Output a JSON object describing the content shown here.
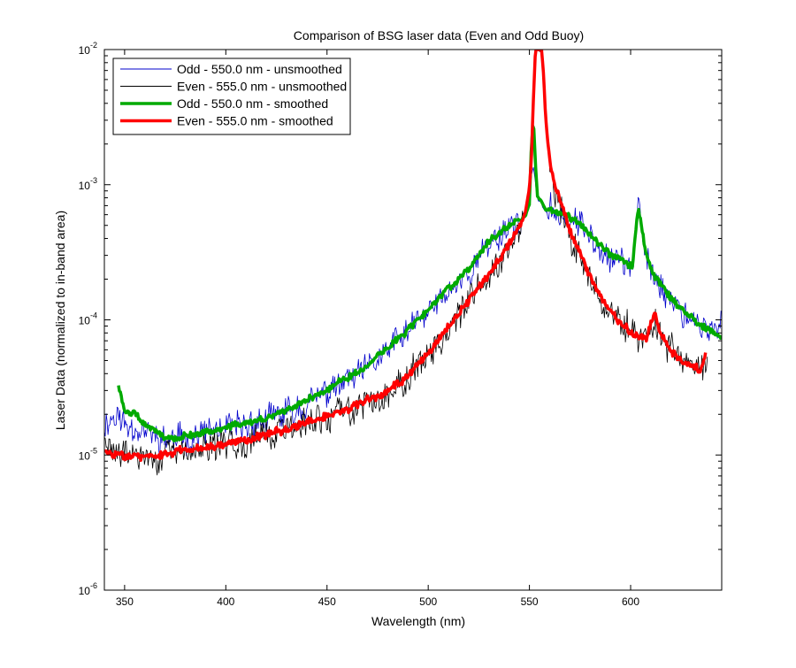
{
  "chart_data": {
    "type": "line",
    "title": "Comparison of BSG laser data (Even and Odd Buoy)",
    "xlabel": "Wavelength (nm)",
    "ylabel": "Laser Data (normalized to in-band area)",
    "xlim": [
      340,
      645
    ],
    "ylim": [
      1e-06,
      0.01
    ],
    "yscale": "log",
    "grid": false,
    "legend_position": "top-left",
    "x_ticks": [
      350,
      400,
      450,
      500,
      550,
      600
    ],
    "x_tick_labels": [
      "350",
      "400",
      "450",
      "500",
      "550",
      "600"
    ],
    "y_ticks": [
      {
        "value": 1e-06,
        "base": "10",
        "exp": "-6"
      },
      {
        "value": 1e-05,
        "base": "10",
        "exp": "-5"
      },
      {
        "value": 0.0001,
        "base": "10",
        "exp": "-4"
      },
      {
        "value": 0.001,
        "base": "10",
        "exp": "-3"
      },
      {
        "value": 0.01,
        "base": "10",
        "exp": "-2"
      }
    ],
    "series": [
      {
        "name": "Odd - 550.0 nm - unsmoothed",
        "color": "#0000cc",
        "line_width": 0.8,
        "noise": 0.55,
        "seed": 11,
        "x": [
          340,
          346,
          350,
          355,
          360,
          365,
          370,
          375,
          380,
          385,
          390,
          395,
          400,
          410,
          420,
          430,
          440,
          450,
          460,
          470,
          480,
          490,
          500,
          510,
          520,
          530,
          540,
          545,
          548,
          550,
          551,
          552,
          553,
          554,
          555,
          556,
          557,
          558,
          560,
          565,
          570,
          575,
          580,
          585,
          590,
          595,
          598,
          601,
          603,
          604,
          605,
          607,
          610,
          615,
          620,
          625,
          630,
          635,
          640,
          645
        ],
        "y": [
          1.7e-05,
          2e-05,
          1.7e-05,
          1.6e-05,
          1.5e-05,
          1.4e-05,
          1.3e-05,
          1.3e-05,
          1.35e-05,
          1.4e-05,
          1.45e-05,
          1.5e-05,
          1.55e-05,
          1.65e-05,
          1.8e-05,
          2.05e-05,
          2.4e-05,
          2.9e-05,
          3.5e-05,
          4.3e-05,
          6e-05,
          8.2e-05,
          0.000115,
          0.00016,
          0.000225,
          0.00036,
          0.0005,
          0.00053,
          0.00058,
          0.0007,
          0.0012,
          0.0013,
          0.001,
          0.0008,
          0.00076,
          0.00073,
          0.00068,
          0.00063,
          0.00063,
          0.0006,
          0.00056,
          0.0005,
          0.00042,
          0.00035,
          0.0003,
          0.000275,
          0.000255,
          0.00025,
          0.00054,
          0.00064,
          0.00052,
          0.00033,
          0.00023,
          0.000175,
          0.000142,
          0.000118,
          0.0001,
          8.8e-05,
          8e-05,
          9.5e-05
        ]
      },
      {
        "name": "Even - 555.0 nm - unsmoothed",
        "color": "#000000",
        "line_width": 0.8,
        "noise": 0.6,
        "seed": 29,
        "x": [
          340,
          346,
          350,
          355,
          360,
          365,
          370,
          375,
          380,
          385,
          390,
          395,
          400,
          410,
          420,
          430,
          440,
          450,
          460,
          470,
          480,
          490,
          500,
          510,
          520,
          530,
          540,
          545,
          548,
          550,
          551,
          552,
          553,
          554,
          555,
          556,
          557,
          558,
          559,
          560,
          562,
          565,
          570,
          575,
          580,
          585,
          590,
          595,
          600,
          605,
          608,
          612,
          615,
          620,
          625,
          630,
          635,
          638
        ],
        "y": [
          1.2e-05,
          1.05e-05,
          1e-05,
          1e-05,
          9.5e-06,
          9.5e-06,
          9.8e-06,
          1e-05,
          1.05e-05,
          1.1e-05,
          1.1e-05,
          1.15e-05,
          1.2e-05,
          1.3e-05,
          1.42e-05,
          1.55e-05,
          1.7e-05,
          1.9e-05,
          2.15e-05,
          2.45e-05,
          2.9e-05,
          3.8e-05,
          5.6e-05,
          8.5e-05,
          0.000135,
          0.00021,
          0.00035,
          0.00048,
          0.0006,
          0.0009,
          0.0015,
          0.004,
          0.01,
          0.01,
          0.01,
          0.01,
          0.006,
          0.003,
          0.002,
          0.0015,
          0.001,
          0.00075,
          0.00045,
          0.0003,
          0.000205,
          0.000145,
          0.000112,
          9.2e-05,
          8.2e-05,
          7.3e-05,
          7.3e-05,
          0.000108,
          7.5e-05,
          5.8e-05,
          5e-05,
          4.5e-05,
          4.1e-05,
          4.3e-05
        ]
      },
      {
        "name": "Odd - 550.0 nm - smoothed",
        "color": "#00aa00",
        "line_width": 3.5,
        "noise": 0.12,
        "seed": 47,
        "x": [
          347,
          350,
          355,
          360,
          365,
          370,
          375,
          380,
          385,
          390,
          395,
          400,
          410,
          420,
          430,
          440,
          450,
          460,
          470,
          480,
          490,
          500,
          510,
          520,
          530,
          540,
          545,
          548,
          550,
          551,
          552,
          553,
          554,
          555,
          556,
          557,
          558,
          560,
          565,
          570,
          575,
          580,
          585,
          590,
          595,
          598,
          601,
          603,
          604,
          605,
          607,
          610,
          615,
          620,
          625,
          630,
          635,
          640,
          645
        ],
        "y": [
          3.3e-05,
          2.1e-05,
          2e-05,
          1.7e-05,
          1.5e-05,
          1.35e-05,
          1.35e-05,
          1.38e-05,
          1.42e-05,
          1.48e-05,
          1.52e-05,
          1.6e-05,
          1.72e-05,
          1.88e-05,
          2.15e-05,
          2.55e-05,
          3.05e-05,
          3.75e-05,
          4.6e-05,
          6.2e-05,
          8.5e-05,
          0.00012,
          0.00017,
          0.00024,
          0.00038,
          0.00051,
          0.00054,
          0.00059,
          0.00072,
          0.002,
          0.003,
          0.0014,
          0.00082,
          0.00078,
          0.00075,
          0.0007,
          0.00065,
          0.00065,
          0.00062,
          0.00058,
          0.00052,
          0.00043,
          0.00036,
          0.000305,
          0.00028,
          0.00026,
          0.000255,
          0.00056,
          0.00066,
          0.00053,
          0.00034,
          0.000235,
          0.00018,
          0.000145,
          0.00012,
          0.000103,
          9e-05,
          8.2e-05,
          7.5e-05
        ]
      },
      {
        "name": "Even - 555.0 nm - smoothed",
        "color": "#ff0000",
        "line_width": 3.5,
        "noise": 0.14,
        "seed": 83,
        "x": [
          340,
          344,
          348,
          352,
          356,
          360,
          365,
          370,
          375,
          380,
          385,
          390,
          395,
          400,
          410,
          420,
          430,
          440,
          450,
          460,
          470,
          480,
          490,
          500,
          510,
          520,
          530,
          540,
          545,
          548,
          550,
          551,
          552,
          553,
          554,
          555,
          556,
          557,
          558,
          559,
          560,
          562,
          565,
          570,
          575,
          580,
          585,
          590,
          595,
          600,
          605,
          608,
          610,
          612,
          615,
          620,
          625,
          630,
          635,
          637
        ],
        "y": [
          1.05e-05,
          1e-05,
          1.02e-05,
          1e-05,
          9.8e-06,
          9.6e-06,
          9.8e-06,
          1e-05,
          1.05e-05,
          1.1e-05,
          1.12e-05,
          1.15e-05,
          1.18e-05,
          1.22e-05,
          1.3e-05,
          1.42e-05,
          1.55e-05,
          1.72e-05,
          1.95e-05,
          2.2e-05,
          2.5e-05,
          2.95e-05,
          3.9e-05,
          5.7e-05,
          8.7e-05,
          0.000138,
          0.000215,
          0.00036,
          0.0005,
          0.00062,
          0.00095,
          0.0016,
          0.0045,
          0.01,
          0.01,
          0.01,
          0.01,
          0.0065,
          0.0032,
          0.0021,
          0.0016,
          0.00105,
          0.00078,
          0.00046,
          0.000305,
          0.00021,
          0.000148,
          0.000114,
          9.4e-05,
          8.3e-05,
          7.4e-05,
          7.4e-05,
          9.5e-05,
          0.000115,
          7.7e-05,
          5.9e-05,
          5.1e-05,
          4.6e-05,
          4.2e-05,
          5.5e-05
        ]
      }
    ]
  }
}
